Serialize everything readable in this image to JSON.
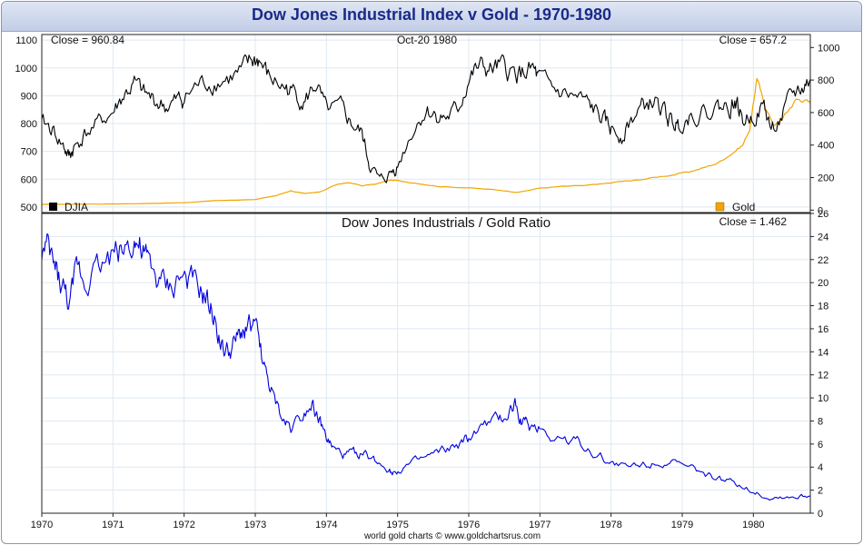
{
  "chart_title": "Dow Jones Industrial Index v Gold - 1970-1980",
  "footer": "world gold charts © www.goldchartsrus.com",
  "colors": {
    "djia": "#000000",
    "gold": "#f2a400",
    "ratio": "#0000dd",
    "grid": "#dde8f2",
    "title": "#1a2a8a"
  },
  "chart_data": [
    {
      "type": "line",
      "panel": "top",
      "annotations": {
        "left_close": "Close = 960.84",
        "date": "Oct-20  1980",
        "right_close": "Close = 657.2"
      },
      "legend": [
        {
          "name": "DJIA",
          "color": "#000000",
          "position": "bottom-left"
        },
        {
          "name": "Gold",
          "color": "#f2a400",
          "position": "bottom-right"
        }
      ],
      "x_ticks": [
        "1970",
        "1971",
        "1972",
        "1973",
        "1974",
        "1975",
        "1976",
        "1977",
        "1978",
        "1979",
        "1980"
      ],
      "xlim": [
        1970.0,
        1980.8
      ],
      "y_left": {
        "ticks": [
          "1100",
          "1000",
          "900",
          "800",
          "700",
          "600",
          "500"
        ],
        "ylim": [
          480,
          1120
        ]
      },
      "y_right": {
        "ticks": [
          "1000",
          "800",
          "600",
          "400",
          "200",
          "0"
        ],
        "ylim": [
          -15,
          1080
        ]
      },
      "grid": true,
      "series": [
        {
          "name": "DJIA",
          "axis": "left",
          "x": [
            1970.0,
            1970.15,
            1970.3,
            1970.38,
            1970.45,
            1970.6,
            1970.8,
            1971.0,
            1971.15,
            1971.3,
            1971.45,
            1971.6,
            1971.75,
            1971.9,
            1972.0,
            1972.2,
            1972.4,
            1972.6,
            1972.8,
            1972.95,
            1973.05,
            1973.2,
            1973.4,
            1973.55,
            1973.7,
            1973.85,
            1974.0,
            1974.2,
            1974.35,
            1974.5,
            1974.6,
            1974.75,
            1974.9,
            1975.0,
            1975.2,
            1975.4,
            1975.55,
            1975.7,
            1975.85,
            1976.0,
            1976.15,
            1976.3,
            1976.45,
            1976.6,
            1976.75,
            1976.9,
            1977.0,
            1977.2,
            1977.4,
            1977.6,
            1977.75,
            1977.9,
            1978.0,
            1978.15,
            1978.3,
            1978.45,
            1978.6,
            1978.75,
            1978.85,
            1978.95,
            1979.1,
            1979.3,
            1979.5,
            1979.65,
            1979.75,
            1979.85,
            1980.0,
            1980.15,
            1980.25,
            1980.4,
            1980.55,
            1980.7,
            1980.8
          ],
          "values": [
            800,
            780,
            720,
            680,
            710,
            760,
            800,
            840,
            900,
            940,
            900,
            880,
            860,
            880,
            890,
            940,
            950,
            960,
            980,
            1020,
            1030,
            960,
            930,
            910,
            880,
            940,
            840,
            850,
            800,
            760,
            660,
            590,
            620,
            650,
            770,
            850,
            830,
            820,
            850,
            960,
            1000,
            990,
            1000,
            980,
            980,
            990,
            950,
            920,
            900,
            880,
            850,
            810,
            780,
            760,
            820,
            860,
            880,
            840,
            800,
            800,
            830,
            840,
            860,
            860,
            880,
            810,
            830,
            860,
            780,
            820,
            900,
            930,
            960
          ]
        },
        {
          "name": "Gold",
          "axis": "right",
          "x": [
            1970.0,
            1970.5,
            1971.0,
            1971.5,
            1972.0,
            1972.5,
            1973.0,
            1973.3,
            1973.5,
            1973.7,
            1973.9,
            1974.1,
            1974.3,
            1974.5,
            1974.7,
            1974.9,
            1975.0,
            1975.3,
            1975.6,
            1975.9,
            1976.2,
            1976.5,
            1976.7,
            1977.0,
            1977.3,
            1977.6,
            1977.9,
            1978.1,
            1978.3,
            1978.6,
            1978.9,
            1979.1,
            1979.3,
            1979.5,
            1979.7,
            1979.85,
            1979.95,
            1980.0,
            1980.05,
            1980.12,
            1980.2,
            1980.3,
            1980.4,
            1980.5,
            1980.6,
            1980.7,
            1980.8
          ],
          "values": [
            35,
            36,
            38,
            41,
            46,
            60,
            65,
            90,
            120,
            100,
            110,
            150,
            170,
            150,
            160,
            185,
            180,
            165,
            145,
            140,
            130,
            120,
            110,
            135,
            145,
            150,
            160,
            175,
            180,
            200,
            220,
            235,
            260,
            290,
            350,
            400,
            500,
            650,
            820,
            700,
            600,
            520,
            560,
            620,
            680,
            680,
            657
          ]
        }
      ]
    },
    {
      "type": "line",
      "panel": "bottom",
      "title": "Dow Jones Industrials  /  Gold Ratio",
      "annotations": {
        "close": "Close = 1.462"
      },
      "x_ticks": [
        "1970",
        "1971",
        "1972",
        "1973",
        "1974",
        "1975",
        "1976",
        "1977",
        "1978",
        "1979",
        "1980"
      ],
      "xlim": [
        1970.0,
        1980.8
      ],
      "y_right": {
        "ticks": [
          "26",
          "24",
          "22",
          "20",
          "18",
          "16",
          "14",
          "12",
          "10",
          "8",
          "6",
          "4",
          "2",
          "0"
        ],
        "ylim": [
          0,
          26
        ]
      },
      "grid": true,
      "series": [
        {
          "name": "Dow Jones Industrials / Gold Ratio",
          "x": [
            1970.0,
            1970.1,
            1970.2,
            1970.3,
            1970.4,
            1970.5,
            1970.6,
            1970.8,
            1971.0,
            1971.15,
            1971.3,
            1971.4,
            1971.5,
            1971.65,
            1971.8,
            1971.95,
            1972.1,
            1972.25,
            1972.35,
            1972.45,
            1972.55,
            1972.65,
            1972.75,
            1972.85,
            1972.95,
            1973.05,
            1973.15,
            1973.25,
            1973.4,
            1973.5,
            1973.65,
            1973.8,
            1973.9,
            1974.0,
            1974.1,
            1974.25,
            1974.4,
            1974.55,
            1974.7,
            1974.85,
            1974.95,
            1975.1,
            1975.3,
            1975.5,
            1975.7,
            1975.9,
            1976.0,
            1976.2,
            1976.4,
            1976.55,
            1976.65,
            1976.75,
            1976.85,
            1977.0,
            1977.2,
            1977.4,
            1977.6,
            1977.8,
            1978.0,
            1978.2,
            1978.4,
            1978.6,
            1978.8,
            1979.0,
            1979.2,
            1979.4,
            1979.6,
            1979.8,
            1980.0,
            1980.2,
            1980.4,
            1980.6,
            1980.8
          ],
          "values": [
            22.8,
            22.5,
            21.0,
            19.5,
            18.0,
            21.5,
            20.5,
            21.5,
            22.5,
            23.0,
            24.0,
            22.5,
            21.5,
            20.0,
            19.5,
            20.5,
            20.0,
            19.0,
            18.0,
            16.5,
            14.0,
            14.0,
            15.0,
            16.0,
            16.5,
            15.0,
            12.0,
            10.0,
            8.0,
            7.5,
            8.5,
            9.8,
            8.0,
            6.5,
            5.5,
            5.0,
            5.2,
            5.0,
            4.5,
            4.0,
            3.5,
            4.0,
            4.5,
            5.0,
            5.5,
            6.0,
            6.5,
            7.5,
            8.0,
            8.5,
            9.5,
            8.0,
            7.5,
            7.5,
            6.5,
            6.5,
            6.0,
            5.0,
            4.5,
            4.0,
            4.2,
            4.5,
            4.5,
            4.0,
            3.7,
            3.2,
            2.8,
            2.5,
            2.0,
            1.3,
            1.4,
            1.4,
            1.5
          ]
        }
      ]
    }
  ]
}
